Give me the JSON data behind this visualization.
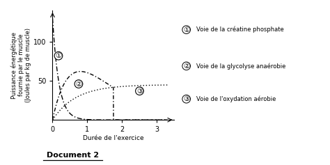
{
  "title": "Document 2",
  "ylabel": "Puissance énergétique\nfournie par le muscle\n(Joules par kg de muscle)",
  "xlabel": "Durée de l'exercice",
  "xlim": [
    0,
    3.5
  ],
  "ylim": [
    0,
    140
  ],
  "yticks": [
    50,
    100
  ],
  "xticks": [
    0,
    1,
    2,
    3
  ],
  "legend_labels": [
    "Voie de la créatine phosphate",
    "Voie de la glycolyse anaérobie",
    "Voie de l'oxydation aérobie"
  ],
  "curve_color": "#000000",
  "bg_color": "#ffffff"
}
